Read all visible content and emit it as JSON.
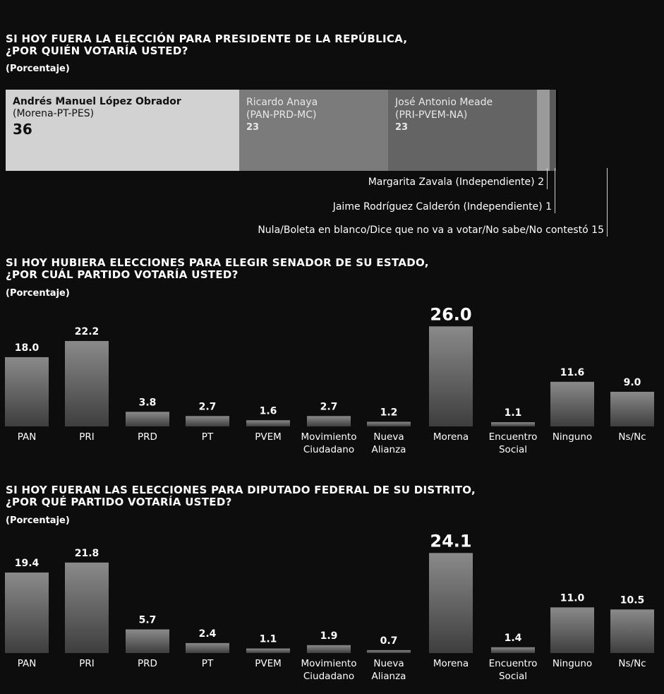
{
  "presidential": {
    "title_line1": "SI HOY FUERA LA ELECCIÓN PARA PRESIDENTE DE LA REPÚBLICA,",
    "title_line2": "¿POR QUIÉN VOTARÍA USTED?",
    "subtitle": "(Porcentaje)",
    "candidates": [
      {
        "name": "Andrés Manuel López Obrador",
        "party": "(Morena-PT-PES)",
        "value": "36"
      },
      {
        "name": "Ricardo Anaya",
        "party": "(PAN-PRD-MC)",
        "value": "23"
      },
      {
        "name": "José Antonio Meade",
        "party": "(PRI-PVEM-NA)",
        "value": "23"
      }
    ],
    "callouts": [
      "Margarita Zavala (Independiente) 2",
      "Jaime Rodríguez Calderón (Independiente) 1",
      "Nula/Boleta en blanco/Dice que no va a votar/No sabe/No contestó 15"
    ]
  },
  "senate": {
    "title_line1": "SI HOY HUBIERA ELECCIONES PARA ELEGIR SENADOR DE SU ESTADO,",
    "title_line2": "¿POR CUÁL PARTIDO VOTARÍA USTED?",
    "subtitle": "(Porcentaje)"
  },
  "deputy": {
    "title_line1": "SI HOY FUERAN LAS ELECCIONES PARA DIPUTADO FEDERAL DE SU DISTRITO,",
    "title_line2": "¿POR QUÉ PARTIDO VOTARÍA USTED?",
    "subtitle": "(Porcentaje)"
  },
  "chart_data": [
    {
      "type": "bar",
      "title": "SI HOY FUERA LA ELECCIÓN PARA PRESIDENTE DE LA REPÚBLICA, ¿POR QUIÉN VOTARÍA USTED?",
      "stacked": true,
      "categories": [
        "Andrés Manuel López Obrador (Morena-PT-PES)",
        "Ricardo Anaya (PAN-PRD-MC)",
        "José Antonio Meade (PRI-PVEM-NA)",
        "Margarita Zavala (Independiente)",
        "Jaime Rodríguez Calderón (Independiente)",
        "Nula/Boleta en blanco/Dice que no va a votar/No sabe/No contestó"
      ],
      "values": [
        36,
        23,
        23,
        2,
        1,
        15
      ]
    },
    {
      "type": "bar",
      "title": "SI HOY HUBIERA ELECCIONES PARA ELEGIR SENADOR DE SU ESTADO, ¿POR CUÁL PARTIDO VOTARÍA USTED?",
      "categories": [
        "PAN",
        "PRI",
        "PRD",
        "PT",
        "PVEM",
        "Movimiento Ciudadano",
        "Nueva Alianza",
        "Morena",
        "Encuentro Social",
        "Ninguno",
        "Ns/Nc"
      ],
      "labels": [
        "18.0",
        "22.2",
        "3.8",
        "2.7",
        "1.6",
        "2.7",
        "1.2",
        "26.0",
        "1.1",
        "11.6",
        "9.0"
      ],
      "values": [
        18.0,
        22.2,
        3.8,
        2.7,
        1.6,
        2.7,
        1.2,
        26.0,
        1.1,
        11.6,
        9.0
      ],
      "highlight": "Morena"
    },
    {
      "type": "bar",
      "title": "SI HOY FUERAN LAS ELECCIONES PARA DIPUTADO FEDERAL DE SU DISTRITO, ¿POR QUÉ PARTIDO VOTARÍA USTED?",
      "categories": [
        "PAN",
        "PRI",
        "PRD",
        "PT",
        "PVEM",
        "Movimiento Ciudadano",
        "Nueva Alianza",
        "Morena",
        "Encuentro Social",
        "Ninguno",
        "Ns/Nc"
      ],
      "labels": [
        "19.4",
        "21.8",
        "5.7",
        "2.4",
        "1.1",
        "1.9",
        "0.7",
        "24.1",
        "1.4",
        "11.0",
        "10.5"
      ],
      "values": [
        19.4,
        21.8,
        5.7,
        2.4,
        1.1,
        1.9,
        0.7,
        24.1,
        1.4,
        11.0,
        10.5
      ],
      "highlight": "Morena"
    }
  ]
}
